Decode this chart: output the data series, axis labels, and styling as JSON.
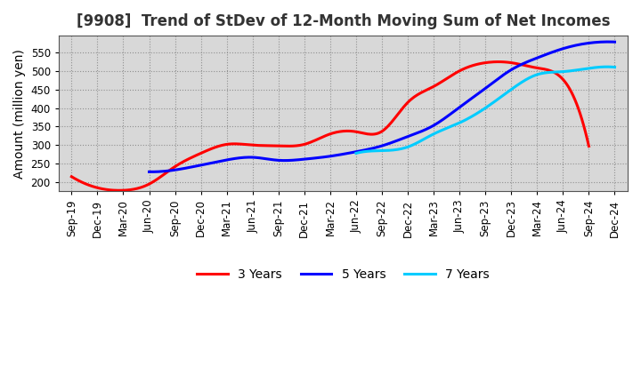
{
  "title": "[9908]  Trend of StDev of 12-Month Moving Sum of Net Incomes",
  "ylabel": "Amount (million yen)",
  "xlabel": "",
  "background_color": "#ffffff",
  "plot_bg_color": "#d8d8d8",
  "grid_color": "#888888",
  "ylim": [
    175,
    595
  ],
  "yticks": [
    200,
    250,
    300,
    350,
    400,
    450,
    500,
    550
  ],
  "x_labels": [
    "Sep-19",
    "Dec-19",
    "Mar-20",
    "Jun-20",
    "Sep-20",
    "Dec-20",
    "Mar-21",
    "Jun-21",
    "Sep-21",
    "Dec-21",
    "Mar-22",
    "Jun-22",
    "Sep-22",
    "Dec-22",
    "Mar-23",
    "Jun-23",
    "Sep-23",
    "Dec-23",
    "Mar-24",
    "Jun-24",
    "Sep-24",
    "Dec-24"
  ],
  "series_3y": [
    215,
    185,
    178,
    195,
    242,
    278,
    302,
    300,
    298,
    302,
    330,
    336,
    337,
    415,
    458,
    500,
    522,
    522,
    508,
    477,
    297,
    null
  ],
  "series_5y": [
    null,
    null,
    null,
    228,
    233,
    246,
    260,
    267,
    259,
    262,
    270,
    282,
    298,
    323,
    353,
    402,
    453,
    503,
    535,
    560,
    575,
    578
  ],
  "series_7y": [
    null,
    null,
    null,
    null,
    null,
    null,
    null,
    null,
    null,
    null,
    null,
    278,
    285,
    295,
    330,
    360,
    400,
    450,
    490,
    498,
    507,
    510
  ],
  "series_10y": [
    null,
    null,
    null,
    null,
    null,
    null,
    null,
    null,
    null,
    null,
    null,
    null,
    null,
    null,
    null,
    null,
    null,
    null,
    null,
    null,
    null,
    null
  ],
  "color_3y": "#ff0000",
  "color_5y": "#0000ff",
  "color_7y": "#00ccff",
  "color_10y": "#008000",
  "lw": 2.2,
  "title_fontsize": 12,
  "label_fontsize": 10,
  "tick_fontsize": 8.5,
  "legend_fontsize": 10
}
